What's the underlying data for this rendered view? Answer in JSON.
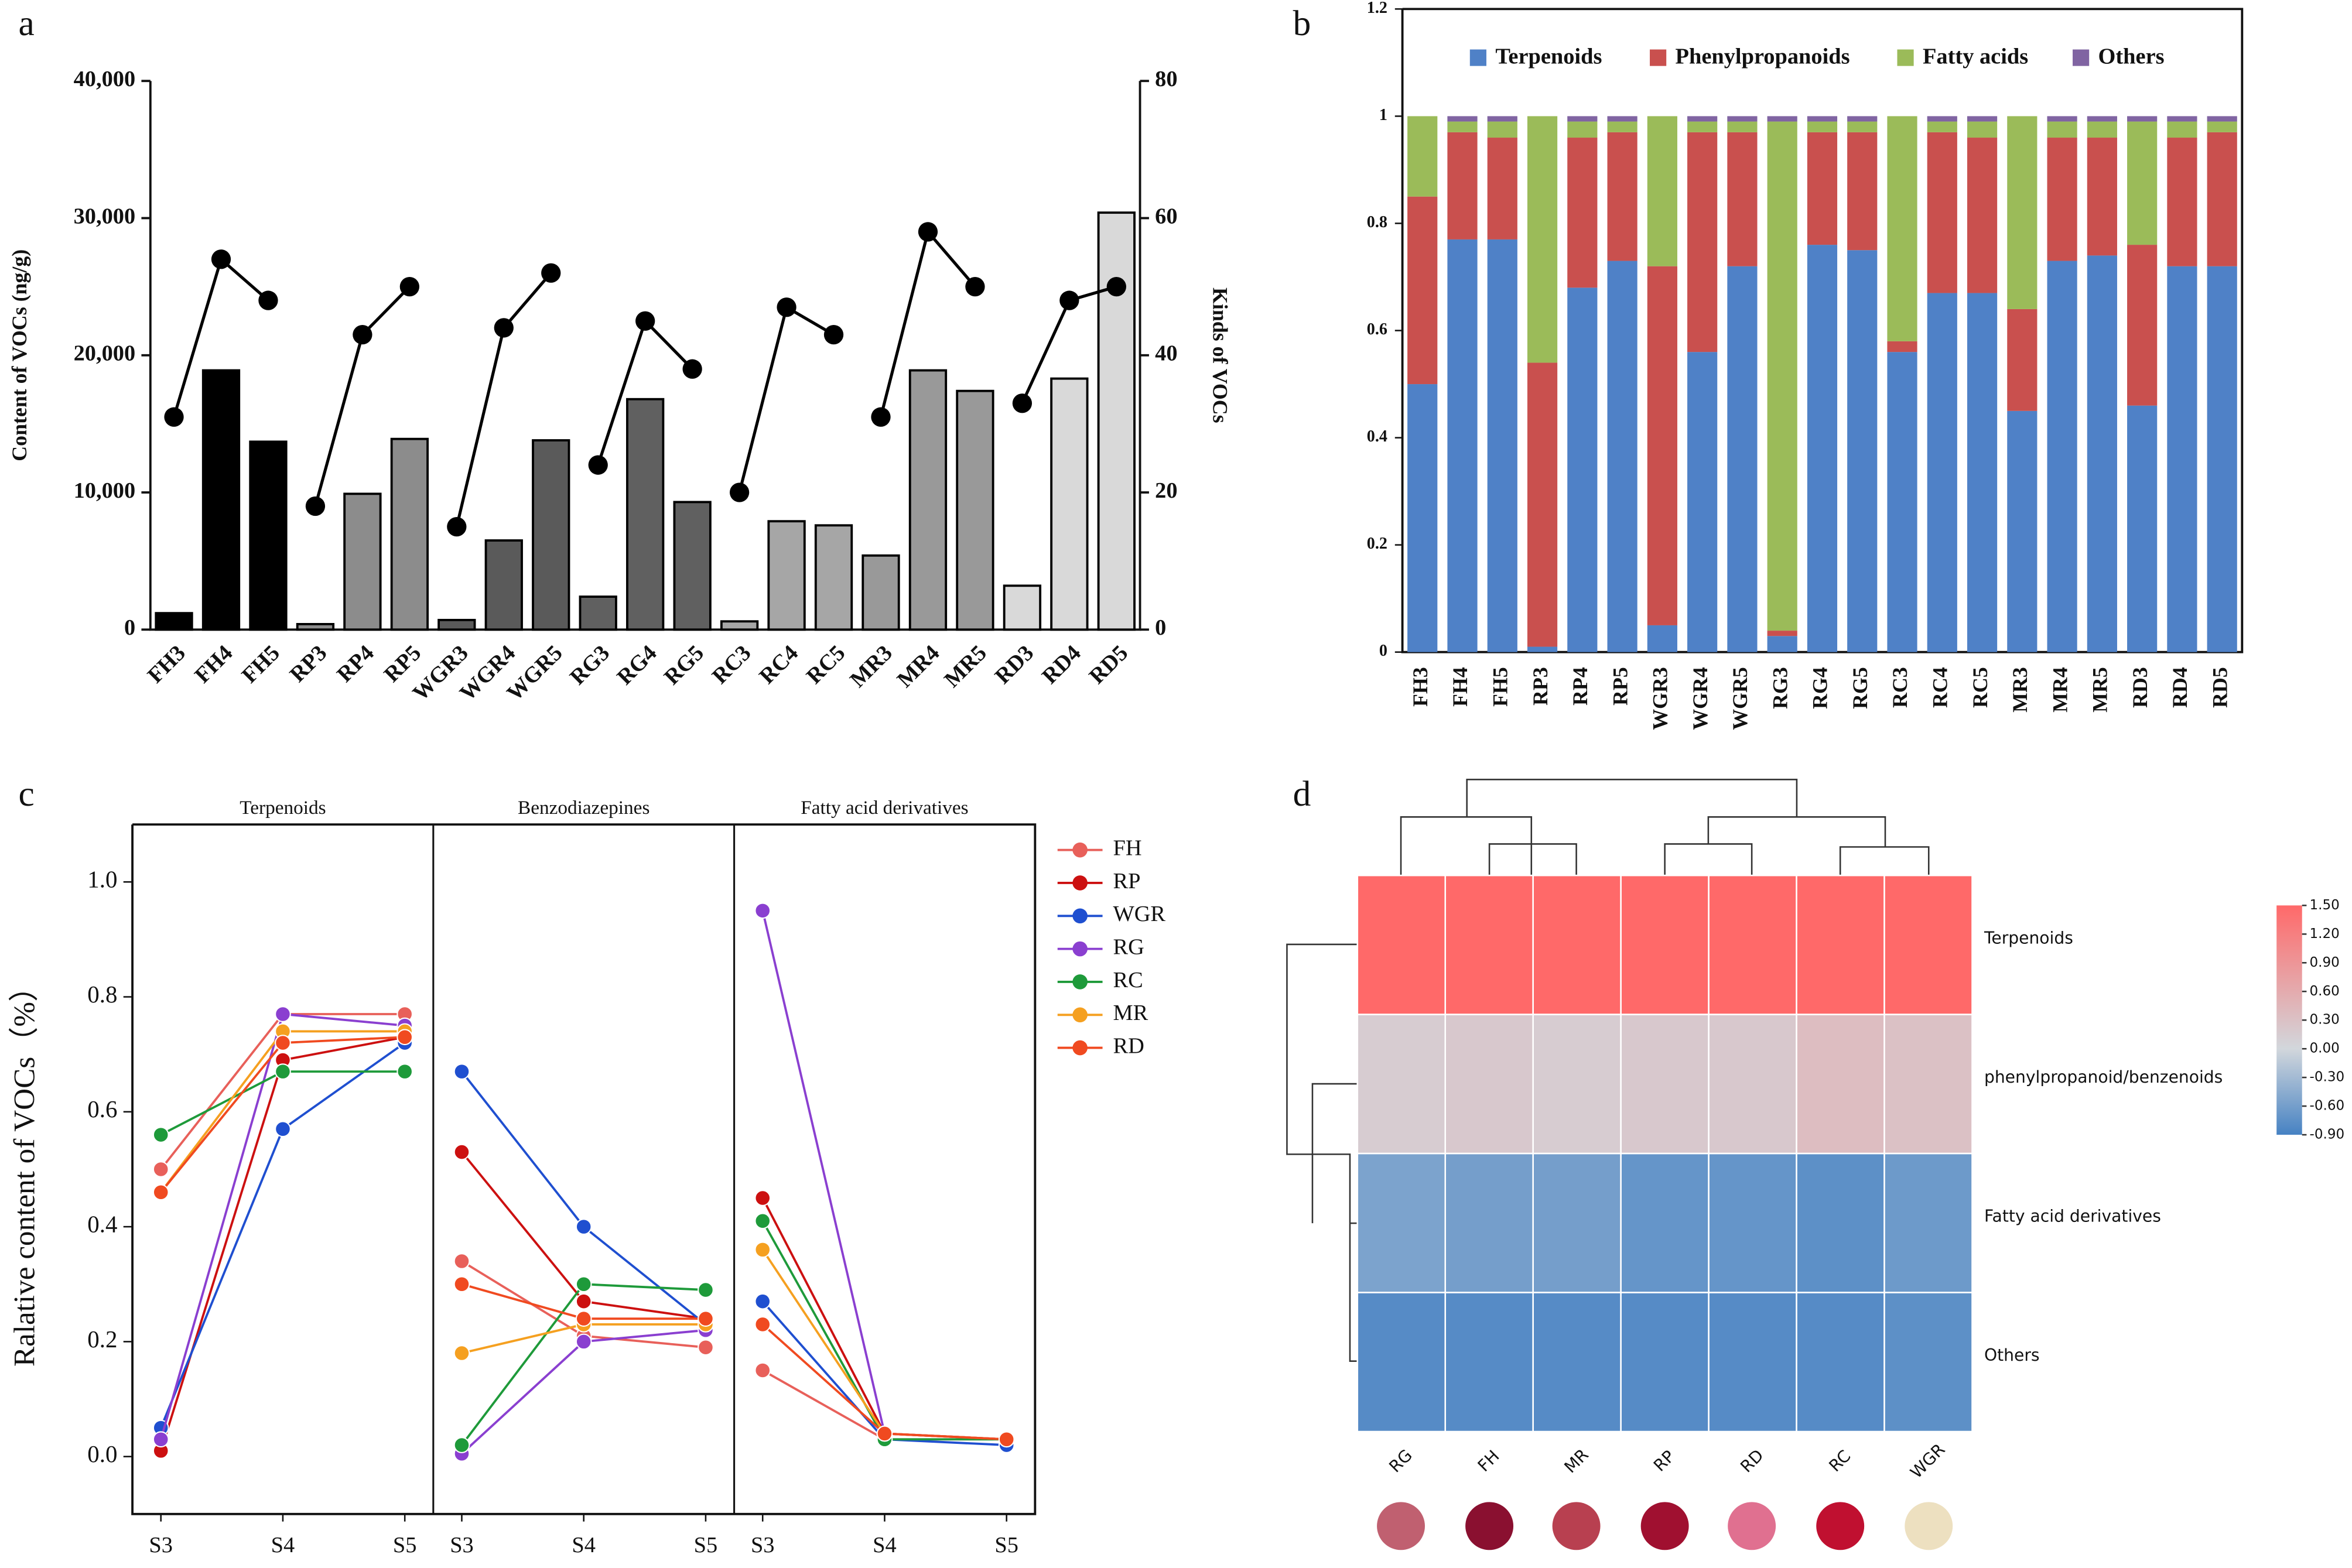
{
  "chart_data": [
    {
      "type": "bar",
      "panel_label": "a",
      "y_label": "Content of VOCs (ng/g)",
      "y2_label": "Kinds of VOCs",
      "categories": [
        "FH3",
        "FH4",
        "FH5",
        "RP3",
        "RP4",
        "RP5",
        "WGR3",
        "WGR4",
        "WGR5",
        "RG3",
        "RG4",
        "RG5",
        "RC3",
        "RC4",
        "RC5",
        "MR3",
        "MR4",
        "MR5",
        "RD3",
        "RD4",
        "RD5"
      ],
      "ylim": [
        0,
        40000
      ],
      "yticks": [
        0,
        {
          "value": 10000,
          "label": "10,000"
        },
        {
          "value": 20000,
          "label": "20,000"
        },
        {
          "value": 30000,
          "label": "30,000"
        },
        {
          "value": 40000,
          "label": "40,000"
        }
      ],
      "y2lim": [
        0,
        80
      ],
      "y2ticks": [
        0,
        20,
        40,
        60,
        80
      ],
      "series": [
        {
          "type": "bar",
          "values": [
            1200,
            18900,
            13700,
            400,
            9900,
            13900,
            700,
            6500,
            13800,
            2400,
            16800,
            9300,
            600,
            7900,
            7600,
            5400,
            18900,
            17400,
            3200,
            18300,
            30400
          ],
          "colors": [
            "#000000",
            "#000000",
            "#000000",
            "#8c8c8c",
            "#8c8c8c",
            "#8c8c8c",
            "#5a5a5a",
            "#5a5a5a",
            "#5a5a5a",
            "#606060",
            "#606060",
            "#606060",
            "#a6a6a6",
            "#a6a6a6",
            "#a6a6a6",
            "#999999",
            "#999999",
            "#999999",
            "#d9d9d9",
            "#d9d9d9",
            "#d9d9d9"
          ]
        },
        {
          "type": "line",
          "axis": "y2",
          "color": "#000000",
          "values": [
            31,
            54,
            48,
            null,
            null,
            null,
            null,
            null,
            null,
            null,
            null,
            null,
            null,
            null,
            null,
            null,
            null,
            null,
            null,
            null,
            null
          ]
        },
        {
          "type": "line",
          "axis": "y2",
          "color": "#000000",
          "values": [
            null,
            null,
            null,
            18,
            43,
            50,
            null,
            null,
            null,
            null,
            null,
            null,
            null,
            null,
            null,
            null,
            null,
            null,
            null,
            null,
            null
          ]
        },
        {
          "type": "line",
          "axis": "y2",
          "color": "#000000",
          "values": [
            null,
            null,
            null,
            null,
            null,
            null,
            15,
            44,
            52,
            null,
            null,
            null,
            null,
            null,
            null,
            null,
            null,
            null,
            null,
            null,
            null
          ]
        },
        {
          "type": "line",
          "axis": "y2",
          "color": "#000000",
          "values": [
            null,
            null,
            null,
            null,
            null,
            null,
            null,
            null,
            null,
            24,
            45,
            38,
            null,
            null,
            null,
            null,
            null,
            null,
            null,
            null,
            null
          ]
        },
        {
          "type": "line",
          "axis": "y2",
          "color": "#000000",
          "values": [
            null,
            null,
            null,
            null,
            null,
            null,
            null,
            null,
            null,
            null,
            null,
            null,
            20,
            47,
            43,
            null,
            null,
            null,
            null,
            null,
            null
          ]
        },
        {
          "type": "line",
          "axis": "y2",
          "color": "#000000",
          "values": [
            null,
            null,
            null,
            null,
            null,
            null,
            null,
            null,
            null,
            null,
            null,
            null,
            null,
            null,
            null,
            31,
            58,
            50,
            null,
            null,
            null
          ]
        },
        {
          "type": "line",
          "axis": "y2",
          "color": "#000000",
          "values": [
            null,
            null,
            null,
            null,
            null,
            null,
            null,
            null,
            null,
            null,
            null,
            null,
            null,
            null,
            null,
            null,
            null,
            null,
            33,
            48,
            50
          ]
        }
      ]
    },
    {
      "type": "stacked_bar",
      "panel_label": "b",
      "categories": [
        "FH3",
        "FH4",
        "FH5",
        "RP3",
        "RP4",
        "RP5",
        "WGR3",
        "WGR4",
        "WGR5",
        "RG3",
        "RG4",
        "RG5",
        "RC3",
        "RC4",
        "RC5",
        "MR3",
        "MR4",
        "MR5",
        "RD3",
        "RD4",
        "RD5"
      ],
      "ylim": [
        0,
        1.2
      ],
      "yticks": [
        0,
        0.2,
        0.4,
        0.6,
        0.8,
        1,
        1.2
      ],
      "series": [
        {
          "name": "Terpenoids",
          "color": "#4f81c7",
          "values": [
            0.5,
            0.77,
            0.77,
            0.01,
            0.68,
            0.73,
            0.05,
            0.56,
            0.72,
            0.03,
            0.76,
            0.75,
            0.56,
            0.67,
            0.67,
            0.45,
            0.73,
            0.74,
            0.46,
            0.72,
            0.72
          ]
        },
        {
          "name": "Phenylpropanoids",
          "color": "#c9504e",
          "values": [
            0.35,
            0.2,
            0.19,
            0.53,
            0.28,
            0.24,
            0.67,
            0.41,
            0.25,
            0.01,
            0.21,
            0.22,
            0.02,
            0.3,
            0.29,
            0.19,
            0.23,
            0.22,
            0.3,
            0.24,
            0.25
          ]
        },
        {
          "name": "Fatty acids",
          "color": "#9bbb59",
          "values": [
            0.15,
            0.02,
            0.03,
            0.46,
            0.03,
            0.02,
            0.28,
            0.02,
            0.02,
            0.95,
            0.02,
            0.02,
            0.42,
            0.02,
            0.03,
            0.36,
            0.03,
            0.03,
            0.23,
            0.03,
            0.02
          ]
        },
        {
          "name": "Others",
          "color": "#8064a2",
          "values": [
            0,
            0.01,
            0.01,
            0,
            0.01,
            0.01,
            0,
            0.01,
            0.01,
            0.01,
            0.01,
            0.01,
            0,
            0.01,
            0.01,
            0,
            0.01,
            0.01,
            0.01,
            0.01,
            0.01
          ]
        }
      ]
    },
    {
      "type": "line",
      "panel_label": "c",
      "y_label": "Ralative content of VOCs（%）",
      "panels": [
        "Terpenoids",
        "Benzodiazepines",
        "Fatty acid derivatives"
      ],
      "x": [
        "S3",
        "S4",
        "S5"
      ],
      "ylim": [
        -0.1,
        1.1
      ],
      "yticks": [
        {
          "value": 0,
          "label": "0.0"
        },
        0.2,
        0.4,
        0.6,
        0.8,
        {
          "value": 1,
          "label": "1.0"
        }
      ],
      "series": [
        {
          "name": "FH",
          "color": "#e8605a",
          "values": [
            [
              0.5,
              0.77,
              0.77
            ],
            [
              0.34,
              0.21,
              0.19
            ],
            [
              0.15,
              0.03,
              0.03
            ]
          ]
        },
        {
          "name": "RP",
          "color": "#cc1010",
          "values": [
            [
              0.01,
              0.69,
              0.73
            ],
            [
              0.53,
              0.27,
              0.24
            ],
            [
              0.45,
              0.04,
              0.03
            ]
          ]
        },
        {
          "name": "WGR",
          "color": "#1f4fd0",
          "values": [
            [
              0.05,
              0.57,
              0.72
            ],
            [
              0.67,
              0.4,
              0.23
            ],
            [
              0.27,
              0.03,
              0.02
            ]
          ]
        },
        {
          "name": "RG",
          "color": "#8a3fd0",
          "values": [
            [
              0.03,
              0.77,
              0.75
            ],
            [
              0.005,
              0.2,
              0.22
            ],
            [
              0.95,
              0.04,
              0.03
            ]
          ]
        },
        {
          "name": "RC",
          "color": "#1e9a3a",
          "values": [
            [
              0.56,
              0.67,
              0.67
            ],
            [
              0.02,
              0.3,
              0.29
            ],
            [
              0.41,
              0.03,
              0.03
            ]
          ]
        },
        {
          "name": "MR",
          "color": "#f5a020",
          "values": [
            [
              0.46,
              0.74,
              0.74
            ],
            [
              0.18,
              0.23,
              0.23
            ],
            [
              0.36,
              0.04,
              0.03
            ]
          ]
        },
        {
          "name": "RD",
          "color": "#f04a20",
          "values": [
            [
              0.46,
              0.72,
              0.73
            ],
            [
              0.3,
              0.24,
              0.24
            ],
            [
              0.23,
              0.04,
              0.03
            ]
          ]
        }
      ]
    },
    {
      "type": "heatmap",
      "panel_label": "d",
      "columns": [
        "RG",
        "FH",
        "MR",
        "RP",
        "RD",
        "RC",
        "WGR"
      ],
      "rows": [
        "Terpenoids",
        "phenylpropanoid/benzenoids",
        "Fatty acid derivatives",
        "Others"
      ],
      "values": [
        [
          1.5,
          1.5,
          1.5,
          1.5,
          1.5,
          1.5,
          1.5
        ],
        [
          0.15,
          0.2,
          0.15,
          0.2,
          0.2,
          0.35,
          0.3
        ],
        [
          -0.55,
          -0.6,
          -0.6,
          -0.7,
          -0.7,
          -0.75,
          -0.65
        ],
        [
          -0.8,
          -0.8,
          -0.8,
          -0.8,
          -0.8,
          -0.8,
          -0.75
        ]
      ],
      "clim": [
        -0.9,
        1.5
      ],
      "cticks": [
        {
          "value": 1.5,
          "label": "1.50"
        },
        {
          "value": 1.2,
          "label": "1.20"
        },
        {
          "value": 0.9,
          "label": "0.90"
        },
        {
          "value": 0.6,
          "label": "0.60"
        },
        {
          "value": 0.3,
          "label": "0.30"
        },
        {
          "value": 0,
          "label": "0.00"
        },
        {
          "value": -0.3,
          "label": "-0.30"
        },
        {
          "value": -0.6,
          "label": "-0.60"
        },
        {
          "value": -0.9,
          "label": "-0.90"
        }
      ]
    }
  ]
}
